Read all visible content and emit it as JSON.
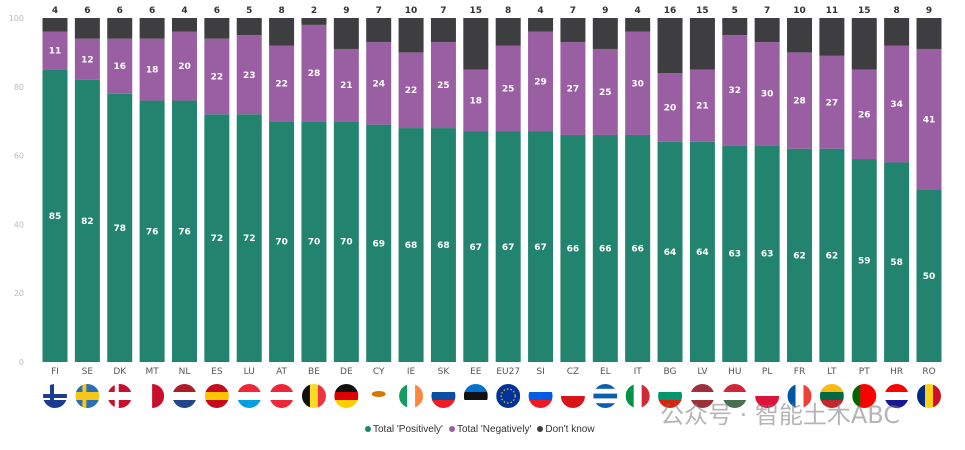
{
  "chart_data": {
    "type": "bar",
    "stacked": true,
    "categories": [
      "FI",
      "SE",
      "DK",
      "MT",
      "NL",
      "ES",
      "LU",
      "AT",
      "BE",
      "DE",
      "CY",
      "IE",
      "SK",
      "EE",
      "EU27",
      "SI",
      "CZ",
      "EL",
      "IT",
      "BG",
      "LV",
      "HU",
      "PL",
      "FR",
      "LT",
      "PT",
      "HR",
      "RO"
    ],
    "series": [
      {
        "name": "Total 'Positively'",
        "color": "#22836e",
        "values": [
          85,
          82,
          78,
          76,
          76,
          72,
          72,
          70,
          70,
          70,
          69,
          68,
          68,
          67,
          67,
          67,
          66,
          66,
          66,
          64,
          64,
          63,
          63,
          62,
          62,
          59,
          58,
          50
        ]
      },
      {
        "name": "Total 'Negatively'",
        "color": "#9a5fa3",
        "values": [
          11,
          12,
          16,
          18,
          20,
          22,
          23,
          22,
          28,
          21,
          24,
          22,
          25,
          18,
          25,
          29,
          27,
          25,
          30,
          20,
          21,
          32,
          30,
          28,
          27,
          26,
          34,
          41
        ]
      },
      {
        "name": "Don't know",
        "color": "#3e3e40",
        "values": [
          4,
          6,
          6,
          6,
          4,
          6,
          5,
          8,
          2,
          9,
          7,
          10,
          7,
          15,
          8,
          4,
          7,
          9,
          4,
          16,
          15,
          5,
          7,
          10,
          11,
          15,
          8,
          9
        ]
      }
    ],
    "yticks": [
      0,
      20,
      40,
      60,
      80,
      100
    ],
    "ylim": [
      0,
      100
    ],
    "grid": false,
    "legend_position": "bottom",
    "flag_icons": [
      "flag-fi",
      "flag-se",
      "flag-dk",
      "flag-mt",
      "flag-nl",
      "flag-es",
      "flag-lu",
      "flag-at",
      "flag-be",
      "flag-de",
      "flag-cy",
      "flag-ie",
      "flag-sk",
      "flag-ee",
      "flag-eu",
      "flag-si",
      "flag-cz",
      "flag-el",
      "flag-it",
      "flag-bg",
      "flag-lv",
      "flag-hu",
      "flag-pl",
      "flag-fr",
      "flag-lt",
      "flag-pt",
      "flag-hr",
      "flag-ro"
    ]
  },
  "legend": {
    "items": [
      "Total 'Positively'",
      "Total 'Negatively'",
      "Don't know"
    ]
  },
  "watermark": "公众号 · 智能土木ABC"
}
